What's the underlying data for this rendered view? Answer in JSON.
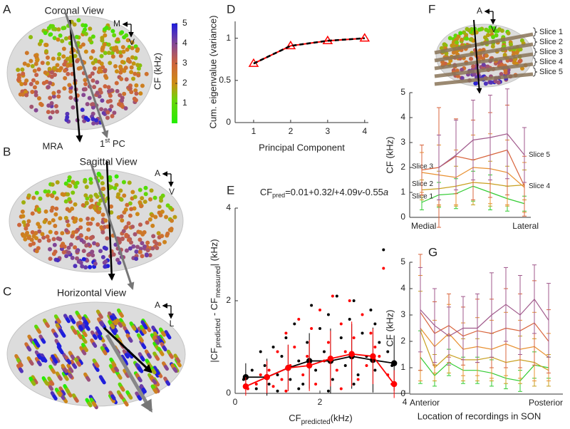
{
  "views": [
    {
      "label": "A",
      "title": "Coronal View",
      "arrow_labels": [
        "MRA",
        [
          "1",
          "st",
          " PC"
        ]
      ],
      "compass": {
        "h": "M",
        "v": "V"
      }
    },
    {
      "label": "B",
      "title": "Sagittal View",
      "compass": {
        "h": "A",
        "v": "V"
      }
    },
    {
      "label": "C",
      "title": "Horizontal View",
      "compass": {
        "h": "A",
        "v": "L"
      }
    }
  ],
  "colorbar": {
    "label": "CF (kHz)",
    "ylim": [
      0,
      5
    ],
    "yticks": [
      1,
      2,
      3,
      4,
      5
    ]
  },
  "slice_image": {
    "compass": {
      "h": "A",
      "v": "V"
    }
  },
  "chart_data": [
    {
      "label": "D",
      "type": "line",
      "x": [
        1,
        2,
        3,
        4
      ],
      "xlim": [
        0.5,
        4.1
      ],
      "xticks": [
        1,
        2,
        3,
        4
      ],
      "ylim": [
        0,
        1.2
      ],
      "yticks": [
        0,
        0.5,
        1
      ],
      "xlabel": "Principal Component",
      "ylabel": "Cum. eigenvalue (variance)",
      "series": [
        {
          "color": "#ff0000",
          "marker": "triangle",
          "values": [
            0.7,
            0.91,
            0.97,
            1.0
          ]
        },
        {
          "color": "#000000",
          "dash": true,
          "values": [
            0.7,
            0.91,
            0.97,
            1.0
          ]
        }
      ]
    },
    {
      "label": "E",
      "type": "scatter",
      "title_parts": [
        "CF",
        "pred",
        "=0.01+0.32",
        "l",
        "+4.09",
        "v",
        "-0.55",
        "a"
      ],
      "xlabel_parts": [
        "CF",
        "predicted",
        "(kHz)"
      ],
      "ylabel_parts": [
        "|CF",
        "predicted",
        " - CF",
        "measured",
        "| (kHz)"
      ],
      "xlim": [
        0,
        4.1
      ],
      "xticks": [
        0,
        2,
        4
      ],
      "ylim": [
        0,
        4
      ],
      "yticks": [
        0,
        2,
        4
      ],
      "series": [
        {
          "color": "#000000",
          "x": [
            0.2,
            0.4,
            0.5,
            0.7,
            0.8,
            0.9,
            1.0,
            1.1,
            1.2,
            1.3,
            1.4,
            1.5,
            1.6,
            1.7,
            1.8,
            1.9,
            2.0,
            2.1,
            2.2,
            2.3,
            2.4,
            2.5,
            2.6,
            2.7,
            2.8,
            2.9,
            3.0,
            3.1,
            3.2,
            3.3,
            3.4,
            3.5,
            3.6,
            3.7,
            1.5,
            2.2,
            2.8,
            1.0,
            0.6,
            3.3
          ],
          "values": [
            0.3,
            0.5,
            0.1,
            0.6,
            0.2,
            1.0,
            0.4,
            0.8,
            1.2,
            0.3,
            1.5,
            0.7,
            0.2,
            1.1,
            1.9,
            0.5,
            1.4,
            0.9,
            1.7,
            0.3,
            2.1,
            1.2,
            0.6,
            1.6,
            2.0,
            0.4,
            1.3,
            0.8,
            1.8,
            0.5,
            1.1,
            3.1,
            0.9,
            0.6,
            0.1,
            0.05,
            0.2,
            0.05,
            0.9,
            1.5
          ]
        },
        {
          "color": "#ff0000",
          "x": [
            0.3,
            0.5,
            0.6,
            0.8,
            0.9,
            1.0,
            1.1,
            1.2,
            1.3,
            1.4,
            1.5,
            1.6,
            1.7,
            1.8,
            1.9,
            2.0,
            2.1,
            2.2,
            2.3,
            2.4,
            2.5,
            2.6,
            2.7,
            2.8,
            2.9,
            3.0,
            3.1,
            3.2,
            3.4,
            3.5,
            3.6,
            3.7,
            1.2,
            2.5,
            3.3
          ],
          "values": [
            0.1,
            0.2,
            0.4,
            0.5,
            0.15,
            0.9,
            0.3,
            1.3,
            0.6,
            1.0,
            1.6,
            0.4,
            0.8,
            1.4,
            0.2,
            1.8,
            0.7,
            1.1,
            2.1,
            0.5,
            1.5,
            0.9,
            2.0,
            1.2,
            0.3,
            1.7,
            0.6,
            1.3,
            0.8,
            2.7,
            0.4,
            0.2,
            0.05,
            0.1,
            1.0
          ]
        },
        {
          "color": "#000000",
          "connect": true,
          "x": [
            0.25,
            0.75,
            1.25,
            1.75,
            2.25,
            2.75,
            3.25,
            3.75
          ],
          "values": [
            0.35,
            0.35,
            0.55,
            0.7,
            0.7,
            0.8,
            0.72,
            0.65
          ],
          "errors": [
            0.3,
            0.4,
            0.5,
            0.6,
            0.7,
            0.7,
            0.7,
            0.6
          ]
        },
        {
          "color": "#ff0000",
          "connect": true,
          "x": [
            0.25,
            0.75,
            1.25,
            1.75,
            2.25,
            2.75,
            3.25,
            3.75
          ],
          "values": [
            0.15,
            0.35,
            0.55,
            0.6,
            0.75,
            0.85,
            0.8,
            0.2
          ],
          "errors": [
            0.2,
            0.35,
            0.5,
            0.55,
            0.6,
            0.7,
            0.6,
            0.3
          ]
        }
      ]
    },
    {
      "label": "F",
      "type": "line",
      "categories": [
        "Medial",
        null,
        null,
        null,
        null,
        null,
        "Lateral"
      ],
      "ylim": [
        0,
        5
      ],
      "yticks": [
        0,
        1,
        2,
        3,
        4,
        5
      ],
      "ylabel": "CF (kHz)",
      "series": [
        {
          "name": "Slice 1",
          "color": "#33cc33",
          "values": [
            0.6,
            0.9,
            0.95,
            1.25,
            1.0,
            0.75,
            0.55
          ],
          "errors": [
            0.3,
            0.5,
            0.6,
            0.6,
            0.7,
            0.5,
            0.3
          ]
        },
        {
          "name": "Slice 2",
          "color": "#c8a020",
          "values": [
            1.1,
            1.15,
            1.25,
            1.4,
            1.35,
            1.25,
            1.3
          ],
          "errors": [
            0.4,
            0.7,
            0.8,
            0.9,
            0.9,
            0.8,
            0.6
          ]
        },
        {
          "name": "Slice 3",
          "color": "#e89030",
          "values": [
            1.8,
            1.7,
            1.6,
            2.0,
            1.95,
            1.8,
            1.2
          ],
          "errors": [
            0.8,
            1.2,
            1.1,
            1.3,
            1.4,
            1.3,
            1.0
          ]
        },
        {
          "name": "Slice 4",
          "color": "#d8643c",
          "values": [
            1.9,
            2.0,
            2.45,
            2.3,
            2.5,
            2.7,
            1.25
          ],
          "errors": [
            1.0,
            2.4,
            1.5,
            1.6,
            1.7,
            1.8,
            1.2
          ]
        },
        {
          "name": "Slice 5",
          "color": "#a05a8c",
          "values": [
            null,
            2.0,
            2.5,
            3.1,
            3.2,
            3.35,
            2.5
          ],
          "errors": [
            null,
            1.3,
            1.4,
            1.6,
            1.7,
            1.8,
            1.1
          ]
        }
      ]
    },
    {
      "label": "G",
      "type": "line",
      "categories": [
        "Anterior",
        null,
        null,
        null,
        null,
        null,
        null,
        null,
        null,
        "Posterior"
      ],
      "ylim": [
        0,
        5
      ],
      "yticks": [
        0,
        1,
        2,
        3,
        4,
        5
      ],
      "ylabel": "CF (kHz)",
      "xlabel": "Location of recordings in SON",
      "series": [
        {
          "color": "#33cc33",
          "values": [
            1.4,
            0.7,
            1.2,
            0.9,
            0.9,
            0.8,
            0.6,
            0.5,
            1.1,
            1.0
          ],
          "errors": [
            1.0,
            0.4,
            0.5,
            0.5,
            0.5,
            0.5,
            0.4,
            0.4,
            0.5,
            0.4
          ]
        },
        {
          "color": "#c8a020",
          "values": [
            2.4,
            1.0,
            1.5,
            1.3,
            1.3,
            1.4,
            1.2,
            1.3,
            1.2,
            0.9
          ],
          "errors": [
            1.5,
            0.5,
            0.7,
            0.8,
            0.8,
            0.9,
            0.8,
            0.9,
            0.9,
            0.6
          ]
        },
        {
          "color": "#e89030",
          "values": [
            2.5,
            1.8,
            2.3,
            1.7,
            1.8,
            1.7,
            1.9,
            1.7,
            1.8,
            1.4
          ],
          "errors": [
            2.0,
            1.0,
            1.1,
            1.0,
            1.1,
            1.1,
            1.2,
            1.1,
            1.3,
            0.9
          ]
        },
        {
          "color": "#d8643c",
          "values": [
            3.1,
            2.3,
            2.6,
            2.2,
            2.4,
            2.3,
            2.5,
            2.4,
            2.7,
            2.0
          ],
          "errors": [
            2.2,
            1.2,
            1.2,
            1.1,
            1.2,
            1.3,
            1.5,
            1.4,
            1.6,
            1.2
          ]
        },
        {
          "color": "#a05a8c",
          "values": [
            3.2,
            2.6,
            2.2,
            2.5,
            2.5,
            3.0,
            3.4,
            3.0,
            3.6,
            2.8
          ],
          "errors": [
            1.6,
            1.4,
            1.1,
            1.2,
            1.3,
            1.6,
            1.4,
            1.5,
            1.3,
            1.4
          ]
        }
      ]
    }
  ]
}
